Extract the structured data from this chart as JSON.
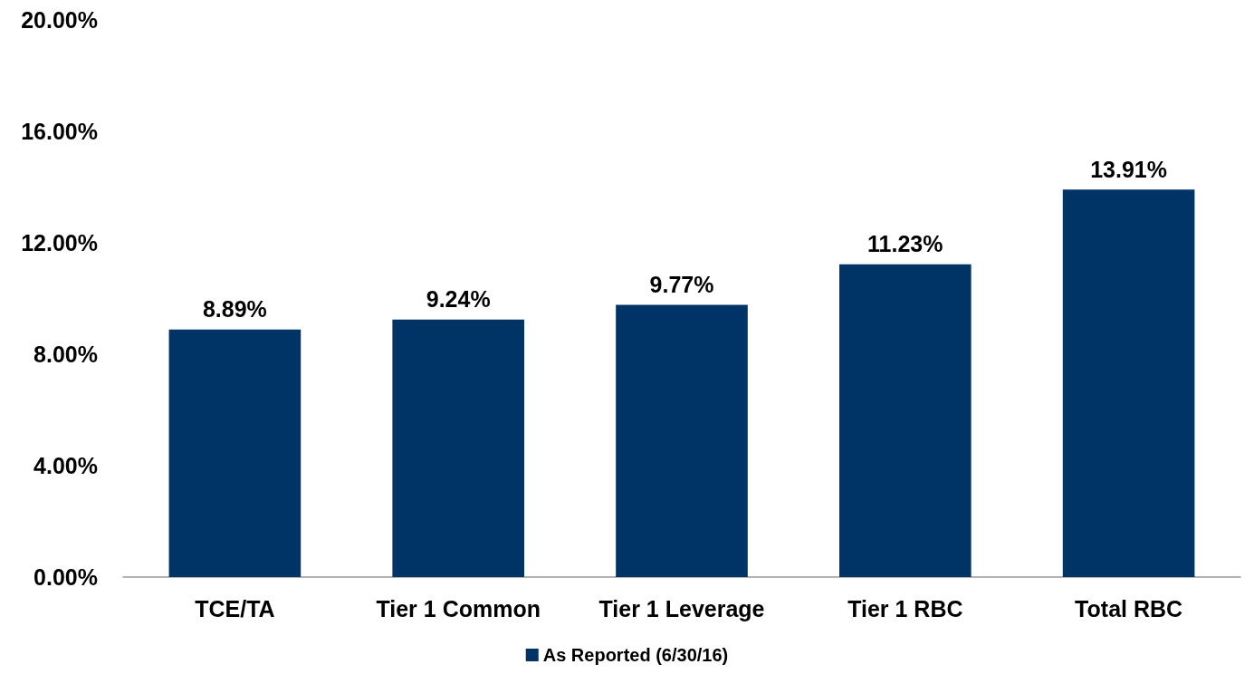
{
  "chart_data": {
    "type": "bar",
    "categories": [
      "TCE/TA",
      "Tier 1 Common",
      "Tier 1 Leverage",
      "Tier 1 RBC",
      "Total RBC"
    ],
    "series": [
      {
        "name": "As Reported (6/30/16)",
        "color": "#003366",
        "values": [
          8.89,
          9.24,
          9.77,
          11.23,
          13.91
        ],
        "value_labels": [
          "8.89%",
          "9.24%",
          "9.77%",
          "11.23%",
          "13.91%"
        ]
      }
    ],
    "ylim": [
      0,
      20
    ],
    "yticks": [
      {
        "value": 0,
        "label": "0.00%"
      },
      {
        "value": 4,
        "label": "4.00%"
      },
      {
        "value": 8,
        "label": "8.00%"
      },
      {
        "value": 12,
        "label": "12.00%"
      },
      {
        "value": 16,
        "label": "16.00%"
      },
      {
        "value": 20,
        "label": "20.00%"
      }
    ],
    "grid": false,
    "legend": "bottom"
  }
}
